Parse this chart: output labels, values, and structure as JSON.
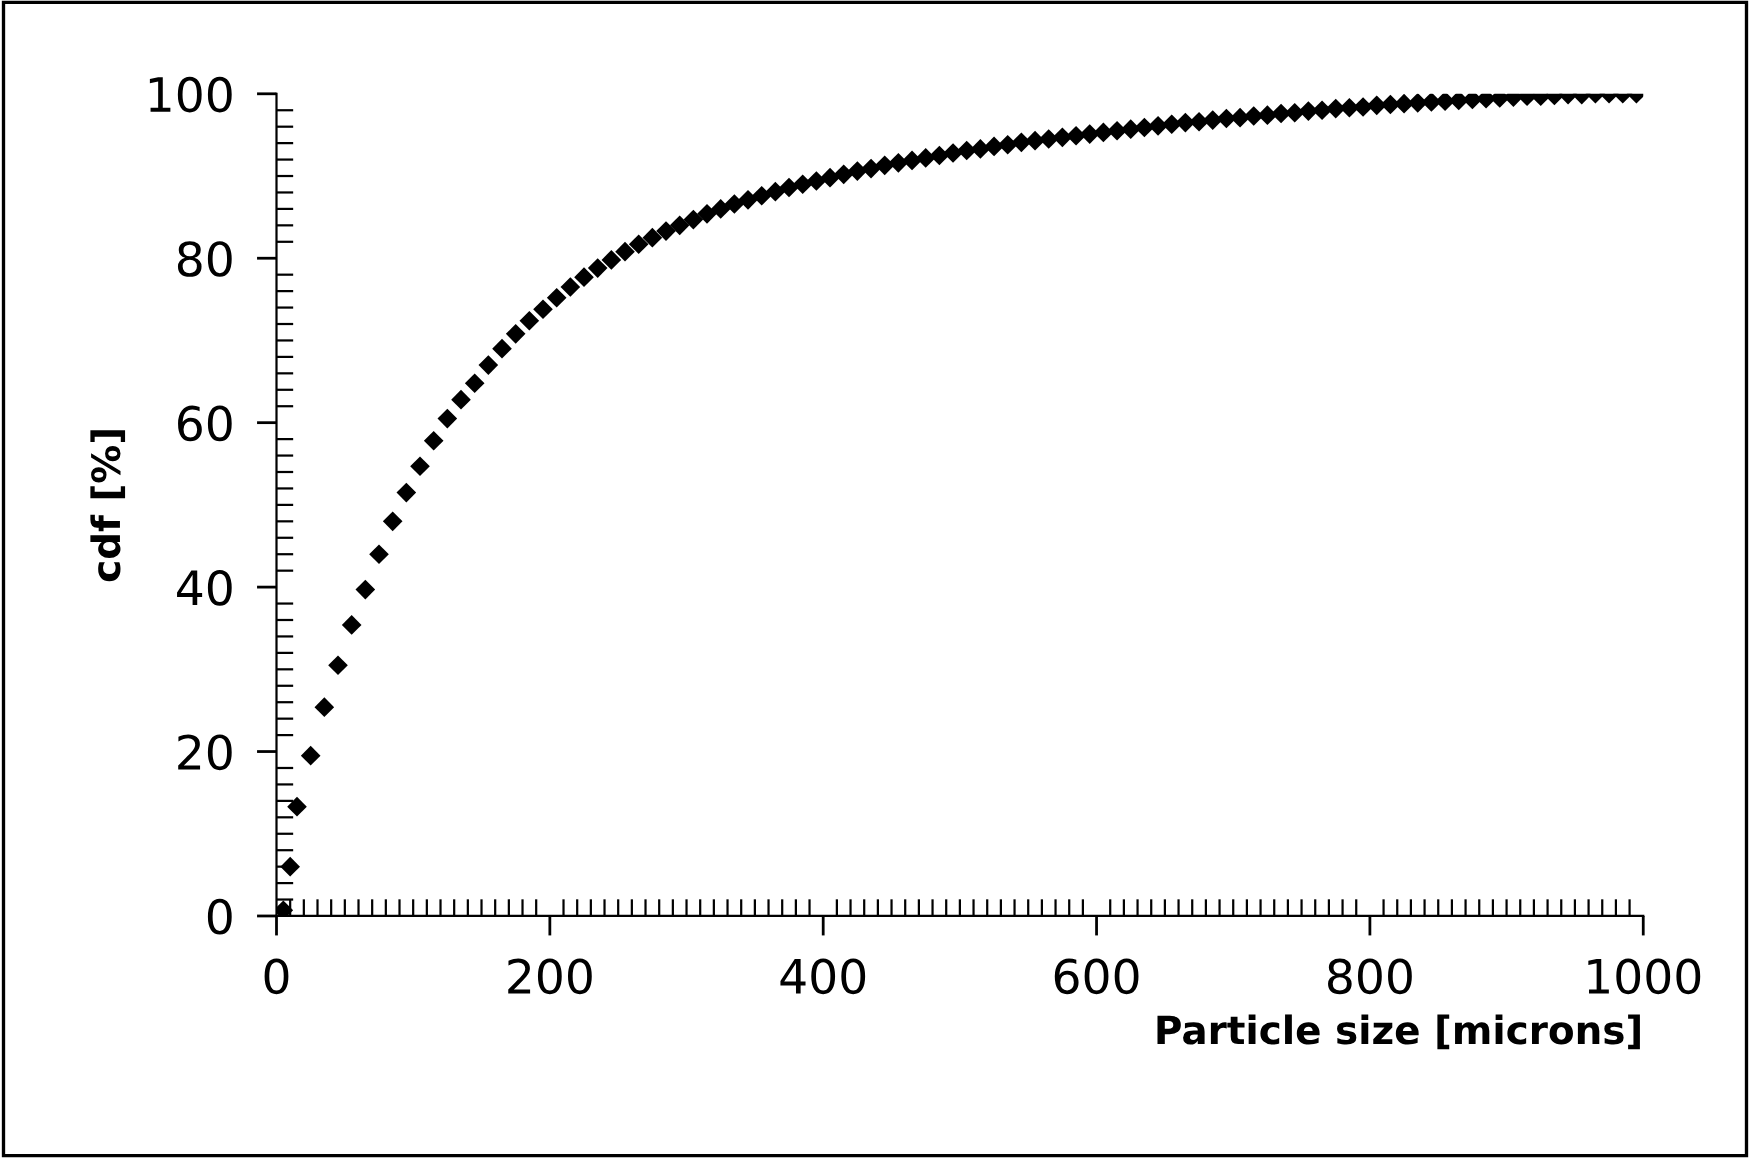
{
  "chart_data": {
    "type": "scatter",
    "xlabel": "Particle size [microns]",
    "ylabel": "cdf [%]",
    "marker": "diamond",
    "grid": false,
    "xlim": [
      0,
      1000
    ],
    "ylim": [
      0,
      100
    ],
    "xticks": [
      0,
      200,
      400,
      600,
      800,
      1000
    ],
    "yticks": [
      0,
      20,
      40,
      60,
      80,
      100
    ],
    "series": [
      {
        "color": "#000000",
        "x": [
          5,
          10,
          15,
          25,
          35,
          45,
          55,
          65,
          75,
          85,
          95,
          105,
          115,
          125,
          135,
          145,
          155,
          165,
          175,
          185,
          195,
          205,
          215,
          225,
          235,
          245,
          255,
          265,
          275,
          285,
          295,
          305,
          315,
          325,
          335,
          345,
          355,
          365,
          375,
          385,
          395,
          405,
          415,
          425,
          435,
          445,
          455,
          465,
          475,
          485,
          495,
          505,
          515,
          525,
          535,
          545,
          555,
          565,
          575,
          585,
          595,
          605,
          615,
          625,
          635,
          645,
          655,
          665,
          675,
          685,
          695,
          705,
          715,
          725,
          735,
          745,
          755,
          765,
          775,
          785,
          795,
          805,
          815,
          825,
          835,
          845,
          855,
          865,
          875,
          885,
          895,
          905,
          915,
          925,
          935,
          945,
          955,
          965,
          975,
          985,
          995
        ],
        "values": [
          0.7,
          6,
          13.3,
          19.5,
          25.4,
          30.5,
          35.4,
          39.7,
          44,
          48,
          51.5,
          54.7,
          57.8,
          60.5,
          62.8,
          64.8,
          67,
          69,
          70.8,
          72.4,
          73.8,
          75.2,
          76.5,
          77.7,
          78.8,
          79.8,
          80.8,
          81.7,
          82.5,
          83.3,
          84,
          84.7,
          85.4,
          86,
          86.6,
          87.1,
          87.6,
          88.1,
          88.6,
          89,
          89.4,
          89.8,
          90.2,
          90.6,
          90.9,
          91.3,
          91.6,
          91.9,
          92.2,
          92.5,
          92.8,
          93.1,
          93.3,
          93.6,
          93.8,
          94.1,
          94.3,
          94.5,
          94.7,
          94.9,
          95.1,
          95.3,
          95.5,
          95.7,
          95.9,
          96.1,
          96.3,
          96.5,
          96.6,
          96.8,
          97,
          97.1,
          97.3,
          97.4,
          97.6,
          97.7,
          97.9,
          98,
          98.2,
          98.3,
          98.4,
          98.6,
          98.7,
          98.8,
          98.9,
          99,
          99.1,
          99.2,
          99.3,
          99.4,
          99.5,
          99.6,
          99.7,
          99.7,
          99.8,
          99.9,
          99.9,
          100,
          100,
          100,
          100
        ]
      }
    ]
  }
}
